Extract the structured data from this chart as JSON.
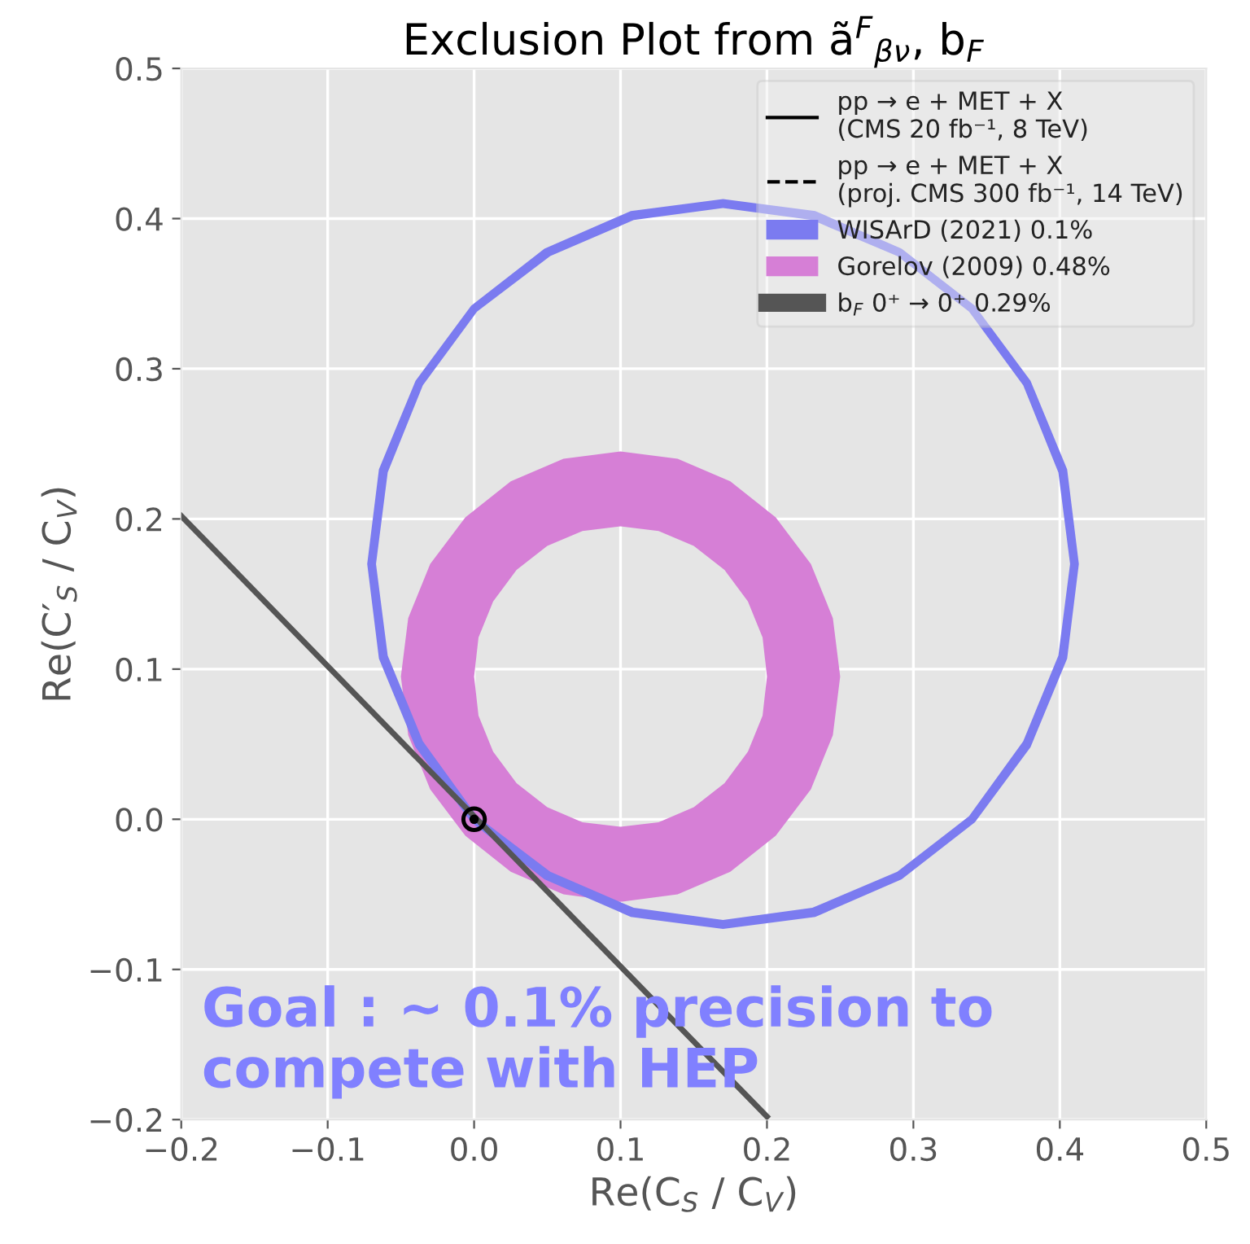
{
  "chart_data": {
    "type": "line",
    "title": "Exclusion Plot from ã$^{F}$$_{βν}$, b$_{F}$",
    "xlabel": "Re(C$_{S}$ / C$_{V}$)",
    "ylabel": "Re(C′$_{S}$ / C$_{V}$)",
    "xlim": [
      -0.2,
      0.5
    ],
    "ylim": [
      -0.2,
      0.5
    ],
    "xticks": [
      {
        "value": -0.2,
        "label": "−0.2"
      },
      {
        "value": -0.1,
        "label": "−0.1"
      },
      {
        "value": 0,
        "label": "0.0"
      },
      0.1,
      0.2,
      0.3,
      0.4,
      0.5
    ],
    "yticks": [
      {
        "value": -0.2,
        "label": "−0.2"
      },
      {
        "value": -0.1,
        "label": "−0.1"
      },
      {
        "value": 0,
        "label": "0.0"
      },
      0.1,
      0.2,
      0.3,
      0.4,
      0.5
    ],
    "grid": true,
    "legend": "top right",
    "series": [
      {
        "name": "pp → e + MET + X\n(CMS 20 fb⁻¹, 8 TeV)",
        "type": "line",
        "line_style": "solid",
        "color": "#000000"
      },
      {
        "name": "pp → e + MET + X\n(proj. CMS 300 fb⁻¹, 14 TeV)",
        "type": "line",
        "line_style": "dashed",
        "color": "#000000"
      },
      {
        "name": "WISArD (2021) 0.1%",
        "type": "area",
        "color": "#7b7bf0",
        "x": [
          0.413,
          0.405,
          0.38,
          0.342,
          0.292,
          0.233,
          0.17,
          0.107,
          0.048,
          -0.002,
          -0.04,
          -0.065,
          -0.073,
          -0.065,
          -0.04,
          -0.002,
          0.048,
          0.107,
          0.17,
          0.233,
          0.292,
          0.342,
          0.38,
          0.405,
          0.413,
          0.407,
          0.399,
          0.375,
          0.338,
          0.289,
          0.231,
          0.17,
          0.109,
          0.052,
          0.002,
          -0.035,
          -0.059,
          -0.067,
          -0.059,
          -0.035,
          0.002,
          0.052,
          0.109,
          0.17,
          0.231,
          0.289,
          0.338,
          0.375,
          0.399,
          0.407
        ],
        "values": [
          0.17,
          0.233,
          0.292,
          0.342,
          0.38,
          0.405,
          0.413,
          0.405,
          0.38,
          0.342,
          0.292,
          0.233,
          0.17,
          0.107,
          0.048,
          -0.002,
          -0.04,
          -0.065,
          -0.073,
          -0.065,
          -0.04,
          -0.002,
          0.048,
          0.107,
          0.17,
          0.17,
          0.109,
          0.052,
          0.002,
          -0.035,
          -0.059,
          -0.067,
          -0.059,
          -0.035,
          0.002,
          0.052,
          0.109,
          0.17,
          0.231,
          0.289,
          0.338,
          0.375,
          0.399,
          0.407,
          0.399,
          0.375,
          0.338,
          0.289,
          0.231,
          0.17
        ]
      },
      {
        "name": "Gorelov (2009) 0.48%",
        "type": "area",
        "color": "#d67fd6",
        "x": [
          0.25,
          0.245,
          0.23,
          0.206,
          0.175,
          0.139,
          0.1,
          0.061,
          0.025,
          -0.006,
          -0.03,
          -0.045,
          -0.05,
          -0.045,
          -0.03,
          -0.006,
          0.025,
          0.061,
          0.1,
          0.139,
          0.175,
          0.206,
          0.23,
          0.245,
          0.25,
          0.2,
          0.197,
          0.187,
          0.171,
          0.15,
          0.126,
          0.1,
          0.074,
          0.05,
          0.029,
          0.013,
          0.003,
          0.0,
          0.003,
          0.013,
          0.029,
          0.05,
          0.074,
          0.1,
          0.126,
          0.15,
          0.171,
          0.187,
          0.197,
          0.2
        ],
        "values": [
          0.095,
          0.134,
          0.17,
          0.201,
          0.225,
          0.24,
          0.245,
          0.24,
          0.225,
          0.201,
          0.17,
          0.134,
          0.095,
          0.056,
          0.02,
          -0.011,
          -0.035,
          -0.05,
          -0.055,
          -0.05,
          -0.035,
          -0.011,
          0.02,
          0.056,
          0.095,
          0.095,
          0.069,
          0.045,
          0.024,
          0.008,
          -0.002,
          -0.005,
          -0.002,
          0.008,
          0.024,
          0.045,
          0.069,
          0.095,
          0.121,
          0.145,
          0.166,
          0.182,
          0.192,
          0.195,
          0.192,
          0.182,
          0.166,
          0.145,
          0.121,
          0.095
        ]
      },
      {
        "name": "b$_{F}$ 0⁺ → 0⁺ 0.29%",
        "type": "line",
        "line_style": "solid",
        "color": "#555555",
        "x": [
          -0.2,
          0.2
        ],
        "values": [
          0.202,
          -0.198
        ]
      },
      {
        "type": "scatter",
        "marker": "circle",
        "color": "#000000",
        "x": [
          0.0
        ],
        "values": [
          0.0
        ]
      }
    ],
    "annotations": [
      "Goal : ~ 0.1% precision to\ncompete with HEP"
    ]
  }
}
